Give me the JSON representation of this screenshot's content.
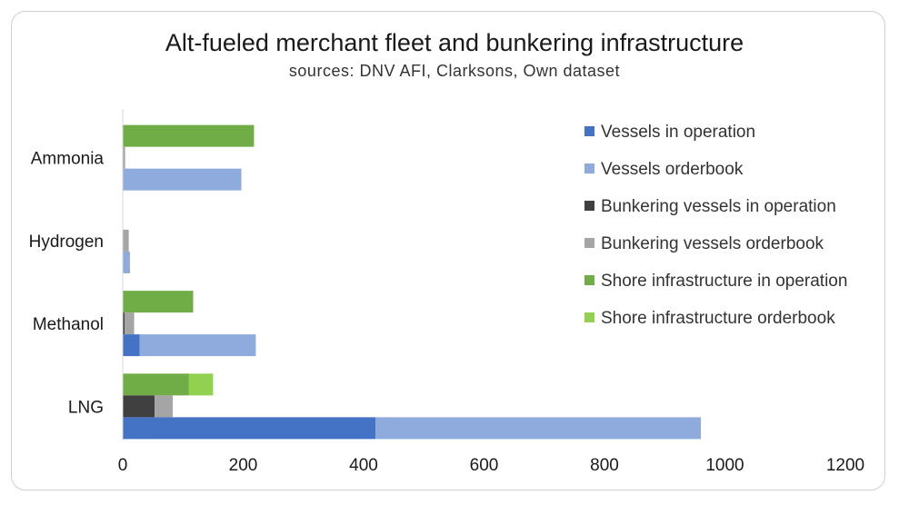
{
  "chart_data": {
    "type": "bar",
    "orientation": "horizontal",
    "stacked": true,
    "title": "Alt-fueled merchant fleet and bunkering infrastructure",
    "subtitle": "sources: DNV AFI, Clarksons, Own dataset",
    "xlim": [
      0,
      1200
    ],
    "x_ticks": [
      "0",
      "200",
      "400",
      "600",
      "800",
      "1000",
      "1200"
    ],
    "categories": [
      "Ammonia",
      "Hydrogen",
      "Methanol",
      "LNG"
    ],
    "groups": [
      {
        "name": "Vessels",
        "series": [
          "Vessels in operation",
          "Vessels orderbook"
        ]
      },
      {
        "name": "Bunkering vessels",
        "series": [
          "Bunkering vessels in operation",
          "Bunkering vessels orderbook"
        ]
      },
      {
        "name": "Shore infrastructure",
        "series": [
          "Shore infrastructure in operation",
          "Shore infrastructure orderbook"
        ]
      }
    ],
    "series": [
      {
        "name": "Vessels in operation",
        "color": "#4472C4",
        "values": [
          0,
          0,
          28,
          420
        ]
      },
      {
        "name": "Vessels orderbook",
        "color": "#8FAADC",
        "values": [
          197,
          12,
          193,
          540
        ]
      },
      {
        "name": "Bunkering vessels in operation",
        "color": "#404040",
        "values": [
          0,
          0,
          3,
          53
        ]
      },
      {
        "name": "Bunkering vessels orderbook",
        "color": "#A5A5A5",
        "values": [
          4,
          10,
          16,
          30
        ]
      },
      {
        "name": "Shore infrastructure in operation",
        "color": "#70AD47",
        "values": [
          218,
          0,
          117,
          110
        ]
      },
      {
        "name": "Shore infrastructure orderbook",
        "color": "#92D050",
        "values": [
          0,
          0,
          0,
          40
        ]
      }
    ],
    "legend_position": "right",
    "grid": false
  }
}
